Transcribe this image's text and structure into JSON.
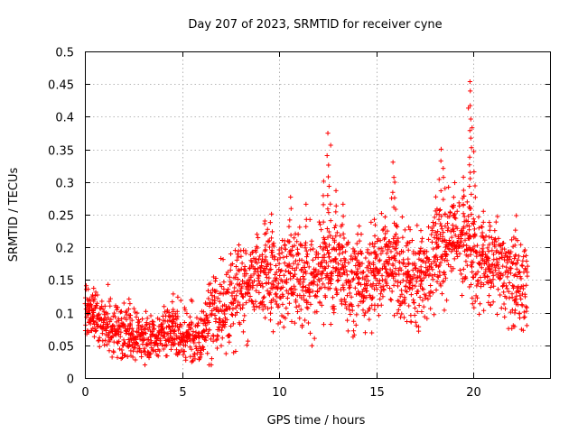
{
  "chart_data": {
    "type": "scatter",
    "title": "Day 207 of 2023, SRMTID for receiver cyne",
    "xlabel": "GPS time / hours",
    "ylabel": "SRMTID / TECUs",
    "xlim": [
      0,
      24
    ],
    "ylim": [
      0,
      0.5
    ],
    "x_ticks": [
      0,
      5,
      10,
      15,
      20
    ],
    "y_ticks": [
      0,
      0.05,
      0.1,
      0.15,
      0.2,
      0.25,
      0.3,
      0.35,
      0.4,
      0.45,
      0.5
    ],
    "x_tick_labels": [
      "0",
      "5",
      "10",
      "15",
      "20"
    ],
    "y_tick_labels": [
      "0",
      "0.05",
      "0.1",
      "0.15",
      "0.2",
      "0.25",
      "0.3",
      "0.35",
      "0.4",
      "0.45",
      "0.5"
    ],
    "grid": true,
    "marker": "+",
    "color": "#ff0000",
    "trend": [
      [
        0.0,
        0.105
      ],
      [
        0.5,
        0.095
      ],
      [
        1.0,
        0.075
      ],
      [
        1.5,
        0.072
      ],
      [
        2.0,
        0.068
      ],
      [
        2.5,
        0.06
      ],
      [
        3.0,
        0.058
      ],
      [
        3.5,
        0.062
      ],
      [
        4.0,
        0.065
      ],
      [
        4.5,
        0.07
      ],
      [
        5.0,
        0.065
      ],
      [
        5.5,
        0.062
      ],
      [
        6.0,
        0.055
      ],
      [
        6.5,
        0.09
      ],
      [
        7.0,
        0.11
      ],
      [
        7.5,
        0.12
      ],
      [
        8.0,
        0.13
      ],
      [
        8.5,
        0.14
      ],
      [
        9.0,
        0.155
      ],
      [
        9.5,
        0.16
      ],
      [
        10.0,
        0.14
      ],
      [
        10.5,
        0.16
      ],
      [
        11.0,
        0.15
      ],
      [
        11.5,
        0.14
      ],
      [
        12.0,
        0.15
      ],
      [
        12.5,
        0.16
      ],
      [
        13.0,
        0.17
      ],
      [
        13.5,
        0.15
      ],
      [
        14.0,
        0.14
      ],
      [
        14.5,
        0.15
      ],
      [
        15.0,
        0.16
      ],
      [
        15.5,
        0.16
      ],
      [
        16.0,
        0.17
      ],
      [
        16.5,
        0.16
      ],
      [
        17.0,
        0.15
      ],
      [
        17.5,
        0.15
      ],
      [
        18.0,
        0.18
      ],
      [
        18.5,
        0.2
      ],
      [
        19.0,
        0.2
      ],
      [
        19.5,
        0.21
      ],
      [
        20.0,
        0.18
      ],
      [
        20.5,
        0.17
      ],
      [
        21.0,
        0.16
      ],
      [
        21.5,
        0.16
      ],
      [
        22.0,
        0.15
      ],
      [
        22.5,
        0.14
      ],
      [
        22.8,
        0.14
      ]
    ],
    "peaks": [
      [
        0.2,
        0.12
      ],
      [
        0.4,
        0.14
      ],
      [
        2.3,
        0.13
      ],
      [
        4.5,
        0.13
      ],
      [
        9.3,
        0.25
      ],
      [
        9.6,
        0.26
      ],
      [
        10.6,
        0.28
      ],
      [
        11.4,
        0.27
      ],
      [
        12.3,
        0.31
      ],
      [
        12.5,
        0.38
      ],
      [
        12.6,
        0.36
      ],
      [
        12.9,
        0.29
      ],
      [
        13.3,
        0.27
      ],
      [
        14.1,
        0.24
      ],
      [
        14.9,
        0.25
      ],
      [
        15.5,
        0.25
      ],
      [
        15.9,
        0.34
      ],
      [
        16.0,
        0.3
      ],
      [
        16.7,
        0.24
      ],
      [
        17.3,
        0.23
      ],
      [
        18.1,
        0.28
      ],
      [
        18.3,
        0.36
      ],
      [
        18.5,
        0.33
      ],
      [
        19.0,
        0.3
      ],
      [
        19.5,
        0.31
      ],
      [
        19.8,
        0.46
      ],
      [
        19.85,
        0.44
      ],
      [
        19.9,
        0.42
      ],
      [
        20.05,
        0.35
      ],
      [
        20.5,
        0.26
      ],
      [
        20.8,
        0.24
      ],
      [
        22.2,
        0.25
      ]
    ]
  }
}
